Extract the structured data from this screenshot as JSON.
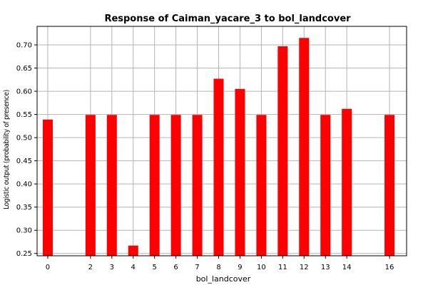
{
  "chart_data": {
    "type": "bar",
    "title": "Response of Caiman_yacare_3 to bol_landcover",
    "xlabel": "bol_landcover",
    "ylabel": "Logistic output (probability of presence)",
    "x": [
      0,
      2,
      3,
      4,
      5,
      6,
      7,
      8,
      9,
      10,
      11,
      12,
      13,
      14,
      16
    ],
    "values": [
      0.539,
      0.549,
      0.549,
      0.267,
      0.549,
      0.549,
      0.549,
      0.627,
      0.605,
      0.549,
      0.697,
      0.715,
      0.549,
      0.562,
      0.549
    ],
    "xlim": [
      -0.5,
      16.8
    ],
    "ylim": [
      0.245,
      0.74
    ],
    "y_ticks": [
      "0.25",
      "0.30",
      "0.35",
      "0.40",
      "0.45",
      "0.50",
      "0.55",
      "0.60",
      "0.65",
      "0.70"
    ],
    "grid": true,
    "bar_color": "#ff0000",
    "grid_color": "#b4b4b4"
  }
}
